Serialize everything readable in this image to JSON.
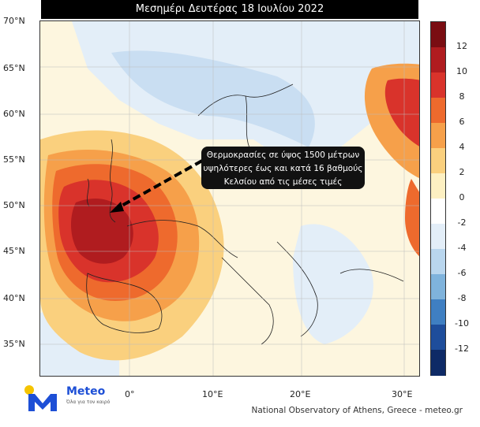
{
  "title": "Μεσημέρι Δευτέρας 18 Ιουλίου 2022",
  "lat_labels": [
    "70°N",
    "65°N",
    "60°N",
    "55°N",
    "50°N",
    "45°N",
    "40°N",
    "35°N"
  ],
  "lon_labels": [
    "0°",
    "10°E",
    "20°E",
    "30°E"
  ],
  "colorbar": {
    "ticks": [
      "12",
      "10",
      "8",
      "6",
      "4",
      "2",
      "0",
      "-2",
      "-4",
      "-6",
      "-8",
      "-10",
      "-12"
    ],
    "colors": [
      "#7a0d12",
      "#b01c1f",
      "#d9332b",
      "#ee6a2d",
      "#f6a04a",
      "#fad07e",
      "#fdf0c2",
      "#ffffff",
      "#e3eef8",
      "#b9d6ee",
      "#7fb3dc",
      "#3f7fc2",
      "#1e4d9b",
      "#0e2a66"
    ]
  },
  "annotation": {
    "line1": "Θερμοκρασίες σε ύψος 1500 μέτρων",
    "line2": "υψηλότερες έως και κατά 16 βαθμούς",
    "line3": "Κελσίου από τις μέσες τιμές"
  },
  "logo": {
    "name": "Meteo",
    "tagline": "Όλα για τον καιρό"
  },
  "credit": "National Observatory of Athens, Greece - meteo.gr"
}
